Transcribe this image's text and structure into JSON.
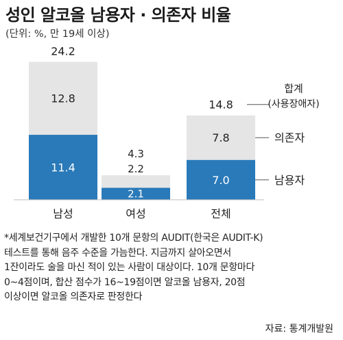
{
  "header": {
    "title": "성인 알코올 남용자 · 의존자 비율",
    "unit": "(단위: %, 만 19세 이상)"
  },
  "chart_data": {
    "type": "bar",
    "stacked": true,
    "categories": [
      "남성",
      "여성",
      "전체"
    ],
    "series": [
      {
        "name": "남용자",
        "values": [
          11.4,
          2.1,
          7.0
        ],
        "color": "#2a7ab9"
      },
      {
        "name": "의존자",
        "values": [
          12.8,
          2.2,
          7.8
        ],
        "color": "#e5e5e5"
      }
    ],
    "totals": [
      24.2,
      4.3,
      14.8
    ],
    "value_labels": {
      "abuse": [
        "11.4",
        "2.1",
        "7.0"
      ],
      "dependence": [
        "12.8",
        "2.2",
        "7.8"
      ],
      "totals": [
        "24.2",
        "4.3",
        "14.8"
      ]
    },
    "legend": {
      "total_line1": "합계",
      "total_line2": "(사용장애자)",
      "dependence": "의존자",
      "abuse": "남용자"
    },
    "ylim": [
      0,
      27
    ]
  },
  "footnote": {
    "text": "*세계보건기구에서 개발한 10개 문항의 AUDIT(한국은 AUDIT-K)\n테스트를 통해 음주 수준을 가늠한다. 지금까지 살아오면서\n1잔이라도 술을 마신 적이 있는 사람이 대상이다. 10개 문항마다\n0~4점이며, 합산 점수가 16~19점이면 알코올 남용자, 20점\n이상이면 알코올 의존자로 판정한다"
  },
  "source": "자료: 통계개발원"
}
